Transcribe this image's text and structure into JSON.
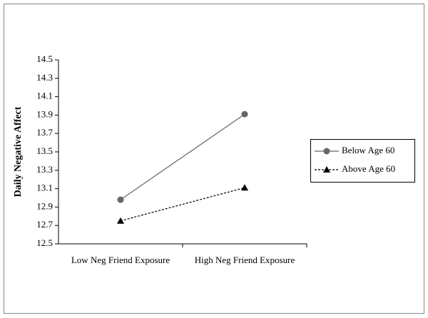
{
  "chart_data": {
    "type": "line",
    "y_label": "Daily Negative Affect",
    "categories": [
      "Low Neg Friend Exposure",
      "High Neg Friend Exposure"
    ],
    "series": [
      {
        "name": "Below Age 60",
        "color": "#666666",
        "marker": "circle",
        "dashed": false,
        "values": [
          12.98,
          13.91
        ]
      },
      {
        "name": "Above Age 60",
        "color": "#000000",
        "marker": "triangle",
        "dashed": true,
        "values": [
          12.75,
          13.11
        ]
      }
    ],
    "ylim": [
      12.5,
      14.5
    ],
    "yticks": [
      12.5,
      12.7,
      12.9,
      13.1,
      13.3,
      13.5,
      13.7,
      13.9,
      14.1,
      14.3,
      14.5
    ],
    "grid": false,
    "legend": "right"
  }
}
